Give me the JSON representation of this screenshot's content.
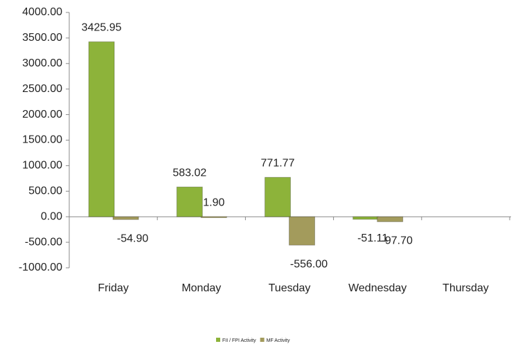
{
  "chart_data": {
    "type": "bar",
    "categories": [
      "Friday",
      "Monday",
      "Tuesday",
      "Wednesday",
      "Thursday"
    ],
    "series": [
      {
        "name": "FII / FPI Activity",
        "color": "#8db33a",
        "values": [
          3425.95,
          583.02,
          771.77,
          -51.11,
          null
        ],
        "value_labels": [
          "3425.95",
          "583.02",
          "771.77",
          "-51.11",
          null
        ]
      },
      {
        "name": "MF Activity",
        "color": "#a39b5c",
        "values": [
          -54.9,
          1.9,
          -556.0,
          -97.7,
          null
        ],
        "value_labels": [
          "-54.90",
          "1.90",
          "-556.00",
          "-97.70",
          null
        ]
      }
    ],
    "ylim": [
      -1000,
      4000
    ],
    "yticks": [
      {
        "value": -1000,
        "label": "-1000.00"
      },
      {
        "value": -500,
        "label": "-500.00"
      },
      {
        "value": 0,
        "label": "0.00"
      },
      {
        "value": 500,
        "label": "500.00"
      },
      {
        "value": 1000,
        "label": "1000.00"
      },
      {
        "value": 1500,
        "label": "1500.00"
      },
      {
        "value": 2000,
        "label": "2000.00"
      },
      {
        "value": 2500,
        "label": "2500.00"
      },
      {
        "value": 3000,
        "label": "3000.00"
      },
      {
        "value": 3500,
        "label": "3500.00"
      },
      {
        "value": 4000,
        "label": "4000.00"
      }
    ],
    "grid": false,
    "legend": "bottom"
  }
}
